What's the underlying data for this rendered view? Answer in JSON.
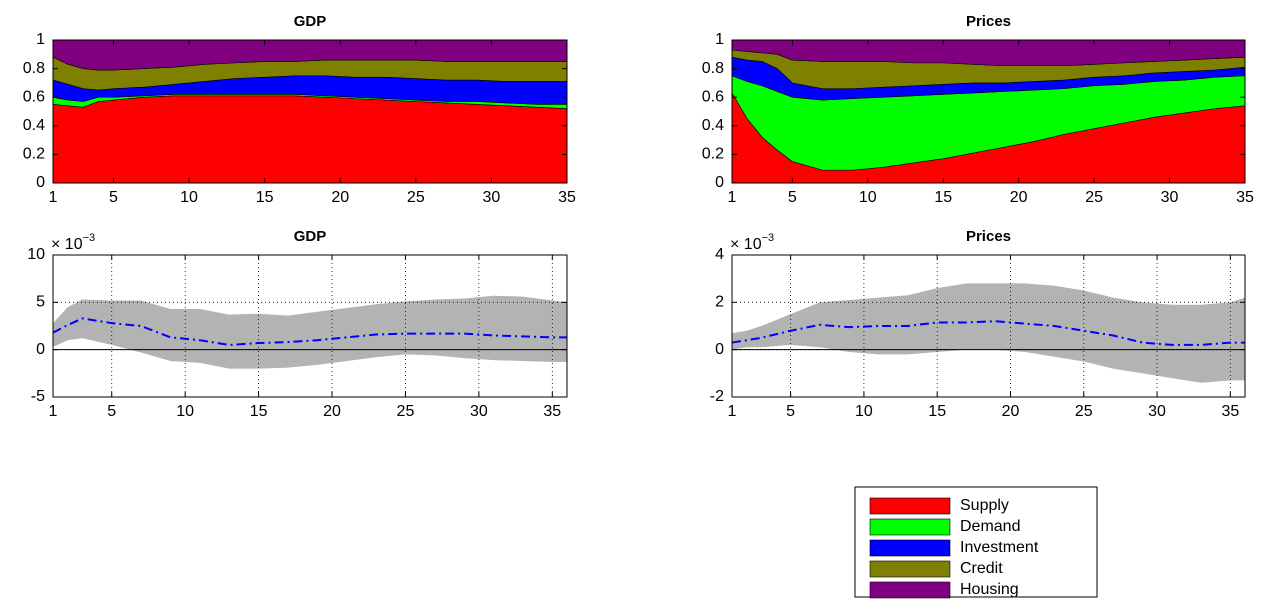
{
  "chart_data": [
    {
      "type": "stacked_area",
      "title": "GDP",
      "x": [
        1,
        2,
        3,
        4,
        5,
        7,
        9,
        11,
        13,
        15,
        17,
        19,
        21,
        23,
        25,
        27,
        29,
        31,
        33,
        35
      ],
      "series": [
        {
          "name": "Supply",
          "color": "#ff0000",
          "values": [
            0.55,
            0.54,
            0.53,
            0.57,
            0.58,
            0.6,
            0.61,
            0.61,
            0.61,
            0.61,
            0.61,
            0.6,
            0.59,
            0.58,
            0.57,
            0.56,
            0.55,
            0.54,
            0.53,
            0.52
          ]
        },
        {
          "name": "Demand",
          "color": "#00ff00",
          "values": [
            0.05,
            0.04,
            0.04,
            0.03,
            0.02,
            0.01,
            0.01,
            0.01,
            0.01,
            0.01,
            0.01,
            0.01,
            0.01,
            0.01,
            0.01,
            0.01,
            0.02,
            0.02,
            0.02,
            0.03
          ]
        },
        {
          "name": "Investment",
          "color": "#0000ff",
          "values": [
            0.12,
            0.11,
            0.09,
            0.05,
            0.06,
            0.06,
            0.07,
            0.09,
            0.11,
            0.12,
            0.13,
            0.14,
            0.14,
            0.15,
            0.15,
            0.15,
            0.15,
            0.15,
            0.16,
            0.16
          ]
        },
        {
          "name": "Credit",
          "color": "#808000",
          "values": [
            0.16,
            0.14,
            0.14,
            0.14,
            0.13,
            0.13,
            0.12,
            0.12,
            0.11,
            0.11,
            0.1,
            0.11,
            0.12,
            0.12,
            0.13,
            0.13,
            0.13,
            0.14,
            0.14,
            0.14
          ]
        },
        {
          "name": "Housing",
          "color": "#800080",
          "values": [
            0.12,
            0.17,
            0.2,
            0.21,
            0.21,
            0.2,
            0.19,
            0.17,
            0.16,
            0.15,
            0.15,
            0.14,
            0.14,
            0.14,
            0.14,
            0.15,
            0.15,
            0.15,
            0.15,
            0.15
          ]
        }
      ],
      "xlim": [
        1,
        35
      ],
      "xticks": [
        1,
        5,
        10,
        15,
        20,
        25,
        30,
        35
      ],
      "ylim": [
        0,
        1
      ],
      "yticks": [
        0,
        0.2,
        0.4,
        0.6,
        0.8,
        1
      ],
      "grid": false
    },
    {
      "type": "stacked_area",
      "title": "Prices",
      "x": [
        1,
        2,
        3,
        4,
        5,
        7,
        9,
        11,
        13,
        15,
        17,
        19,
        21,
        23,
        25,
        27,
        29,
        31,
        33,
        35
      ],
      "series": [
        {
          "color": "#ff0000",
          "values": [
            0.63,
            0.45,
            0.32,
            0.23,
            0.15,
            0.09,
            0.09,
            0.11,
            0.14,
            0.17,
            0.21,
            0.25,
            0.29,
            0.34,
            0.38,
            0.42,
            0.46,
            0.49,
            0.52,
            0.54
          ]
        },
        {
          "color": "#00ff00",
          "values": [
            0.12,
            0.26,
            0.36,
            0.41,
            0.45,
            0.49,
            0.5,
            0.49,
            0.47,
            0.45,
            0.42,
            0.39,
            0.36,
            0.32,
            0.3,
            0.27,
            0.25,
            0.23,
            0.22,
            0.21
          ]
        },
        {
          "color": "#0000ff",
          "values": [
            0.13,
            0.15,
            0.17,
            0.16,
            0.1,
            0.08,
            0.07,
            0.07,
            0.07,
            0.07,
            0.07,
            0.06,
            0.06,
            0.06,
            0.06,
            0.06,
            0.06,
            0.06,
            0.05,
            0.06
          ]
        },
        {
          "color": "#808000",
          "values": [
            0.05,
            0.06,
            0.06,
            0.1,
            0.16,
            0.19,
            0.19,
            0.18,
            0.16,
            0.15,
            0.13,
            0.12,
            0.11,
            0.1,
            0.09,
            0.09,
            0.08,
            0.08,
            0.08,
            0.07
          ]
        },
        {
          "color": "#800080",
          "values": [
            0.07,
            0.08,
            0.09,
            0.1,
            0.14,
            0.15,
            0.15,
            0.15,
            0.16,
            0.16,
            0.17,
            0.18,
            0.18,
            0.18,
            0.17,
            0.16,
            0.15,
            0.14,
            0.13,
            0.12
          ]
        }
      ],
      "xlim": [
        1,
        35
      ],
      "xticks": [
        1,
        5,
        10,
        15,
        20,
        25,
        30,
        35
      ],
      "ylim": [
        0,
        1
      ],
      "yticks": [
        0,
        0.2,
        0.4,
        0.6,
        0.8,
        1
      ],
      "grid": false
    },
    {
      "type": "band",
      "title": "GDP",
      "y_scale_label": "× 10",
      "y_scale_exponent": "−3",
      "x": [
        1,
        2,
        3,
        5,
        7,
        9,
        11,
        13,
        15,
        17,
        19,
        21,
        23,
        25,
        27,
        29,
        31,
        33,
        35,
        36
      ],
      "upper": [
        2.8,
        4.5,
        5.3,
        5.2,
        5.2,
        4.3,
        4.3,
        3.7,
        3.8,
        3.6,
        4.0,
        4.4,
        4.8,
        5.1,
        5.3,
        5.4,
        5.7,
        5.6,
        5.2,
        5.0
      ],
      "lower": [
        0.3,
        1.0,
        1.2,
        0.5,
        -0.3,
        -1.2,
        -1.4,
        -2.0,
        -2.0,
        -1.9,
        -1.6,
        -1.2,
        -0.8,
        -0.5,
        -0.6,
        -0.9,
        -1.1,
        -1.2,
        -1.3,
        -1.3
      ],
      "median": [
        1.8,
        2.6,
        3.3,
        2.8,
        2.5,
        1.3,
        1.0,
        0.5,
        0.7,
        0.8,
        1.0,
        1.3,
        1.6,
        1.7,
        1.7,
        1.7,
        1.5,
        1.4,
        1.3,
        1.3
      ],
      "band_color": "#b3b3b3",
      "median_color": "#0000ff",
      "zero_line": true,
      "xlim": [
        1,
        36
      ],
      "xticks": [
        1,
        5,
        10,
        15,
        20,
        25,
        30,
        35
      ],
      "ylim": [
        -5,
        10
      ],
      "yticks": [
        -5,
        0,
        5,
        10
      ],
      "grid": true
    },
    {
      "type": "band",
      "title": "Prices",
      "y_scale_label": "× 10",
      "y_scale_exponent": "−3",
      "x": [
        1,
        2,
        3,
        5,
        7,
        9,
        11,
        13,
        15,
        17,
        19,
        21,
        23,
        25,
        27,
        29,
        31,
        33,
        35,
        36
      ],
      "upper": [
        0.7,
        0.8,
        1.0,
        1.5,
        2.0,
        2.1,
        2.2,
        2.3,
        2.6,
        2.8,
        2.8,
        2.8,
        2.7,
        2.5,
        2.2,
        2.0,
        1.9,
        1.9,
        2.0,
        2.2
      ],
      "lower": [
        0.0,
        0.1,
        0.1,
        0.2,
        0.1,
        -0.1,
        -0.2,
        -0.2,
        -0.1,
        0.0,
        0.0,
        -0.1,
        -0.3,
        -0.5,
        -0.8,
        -1.0,
        -1.2,
        -1.4,
        -1.3,
        -1.3
      ],
      "median": [
        0.3,
        0.4,
        0.5,
        0.8,
        1.05,
        0.95,
        1.0,
        1.0,
        1.15,
        1.15,
        1.2,
        1.1,
        1.0,
        0.8,
        0.6,
        0.3,
        0.2,
        0.2,
        0.3,
        0.3
      ],
      "band_color": "#b3b3b3",
      "median_color": "#0000ff",
      "zero_line": true,
      "xlim": [
        1,
        36
      ],
      "xticks": [
        1,
        5,
        10,
        15,
        20,
        25,
        30,
        35
      ],
      "ylim": [
        -2,
        4
      ],
      "yticks": [
        -2,
        0,
        2,
        4
      ],
      "grid": true
    }
  ]
}
